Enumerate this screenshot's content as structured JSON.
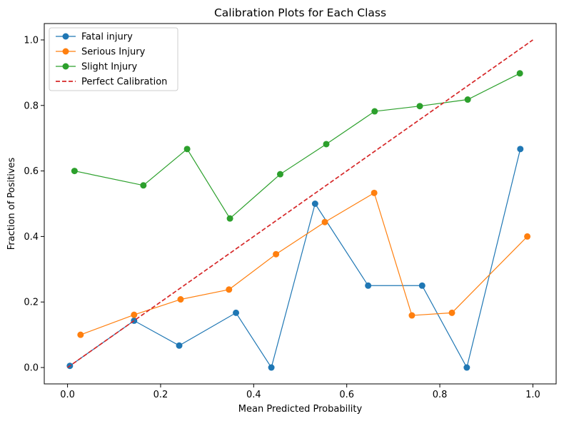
{
  "chart_data": {
    "type": "line",
    "title": "Calibration Plots for Each Class",
    "xlabel": "Mean Predicted Probability",
    "ylabel": "Fraction of Positives",
    "xlim": [
      -0.05,
      1.05
    ],
    "ylim": [
      -0.05,
      1.05
    ],
    "xticks": [
      0.0,
      0.2,
      0.4,
      0.6,
      0.8,
      1.0
    ],
    "yticks": [
      0.0,
      0.2,
      0.4,
      0.6,
      0.8,
      1.0
    ],
    "xtick_labels": [
      "0.0",
      "0.2",
      "0.4",
      "0.6",
      "0.8",
      "1.0"
    ],
    "ytick_labels": [
      "0.0",
      "0.2",
      "0.4",
      "0.6",
      "0.8",
      "1.0"
    ],
    "grid": false,
    "legend_position": "upper-left",
    "series": [
      {
        "name": "Fatal injury",
        "color": "#1f77b4",
        "marker": "circle",
        "x": [
          0.005,
          0.143,
          0.24,
          0.362,
          0.438,
          0.532,
          0.646,
          0.762,
          0.858,
          0.973
        ],
        "y": [
          0.005,
          0.143,
          0.067,
          0.167,
          0.0,
          0.5,
          0.25,
          0.25,
          0.0,
          0.667
        ]
      },
      {
        "name": "Serious Injury",
        "color": "#ff7f0e",
        "marker": "circle",
        "x": [
          0.028,
          0.143,
          0.243,
          0.347,
          0.448,
          0.553,
          0.659,
          0.74,
          0.826,
          0.988
        ],
        "y": [
          0.1,
          0.161,
          0.208,
          0.238,
          0.346,
          0.444,
          0.533,
          0.159,
          0.167,
          0.4
        ]
      },
      {
        "name": "Slight Injury",
        "color": "#2ca02c",
        "marker": "circle",
        "x": [
          0.015,
          0.163,
          0.257,
          0.349,
          0.457,
          0.556,
          0.66,
          0.757,
          0.86,
          0.972
        ],
        "y": [
          0.6,
          0.556,
          0.667,
          0.455,
          0.59,
          0.682,
          0.782,
          0.798,
          0.818,
          0.898
        ]
      },
      {
        "name": "Perfect Calibration",
        "color": "#d62728",
        "dashed": true,
        "x": [
          0.0,
          1.0
        ],
        "y": [
          0.0,
          1.0
        ]
      }
    ]
  }
}
